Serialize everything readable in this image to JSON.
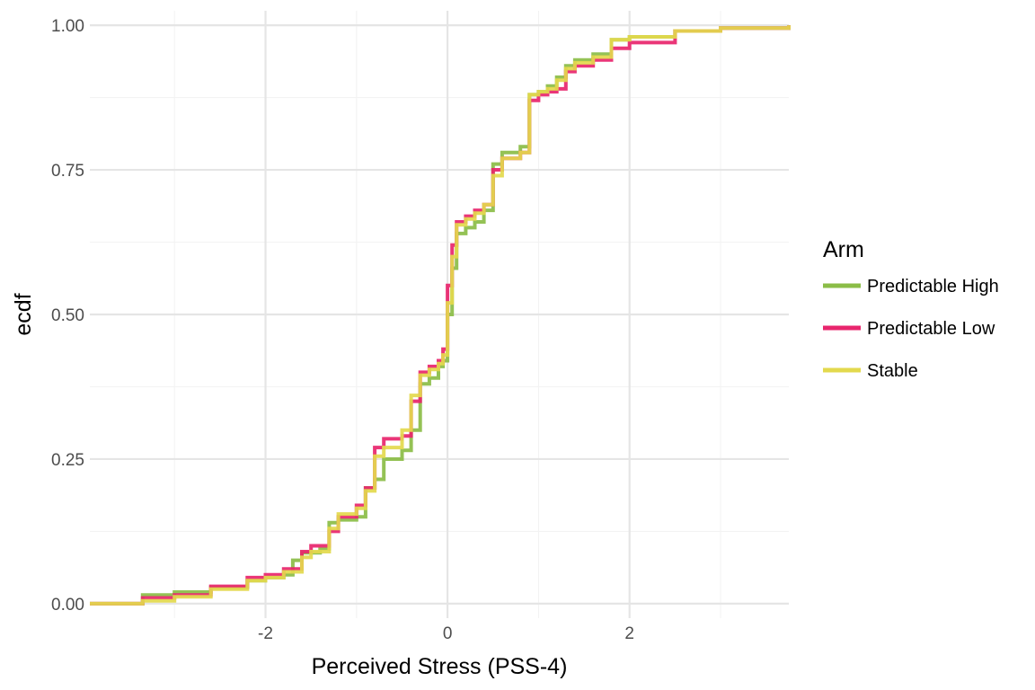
{
  "chart_data": {
    "type": "line",
    "subtype": "ecdf-step",
    "title": "",
    "xlabel": "Perceived Stress (PSS-4)",
    "ylabel": "ecdf",
    "xlim": [
      -3.93,
      3.75
    ],
    "ylim": [
      -0.025,
      1.025
    ],
    "x_ticks": [
      -2,
      0,
      2
    ],
    "x_tick_labels": [
      "-2",
      "0",
      "2"
    ],
    "y_ticks": [
      0,
      0.25,
      0.5,
      0.75,
      1
    ],
    "y_tick_labels": [
      "0.00",
      "0.25",
      "0.50",
      "0.75",
      "1.00"
    ],
    "grid": true,
    "legend_title": "Arm",
    "legend_position": "right",
    "series": [
      {
        "name": "Predictable High",
        "color": "#8bbd47",
        "x": [
          -3.93,
          -3.45,
          -3.35,
          -3.0,
          -2.6,
          -2.2,
          -2.0,
          -1.8,
          -1.7,
          -1.6,
          -1.4,
          -1.3,
          -1.2,
          -1.0,
          -0.9,
          -0.8,
          -0.7,
          -0.5,
          -0.4,
          -0.3,
          -0.2,
          -0.1,
          -0.05,
          0.0,
          0.05,
          0.1,
          0.2,
          0.3,
          0.4,
          0.5,
          0.6,
          0.8,
          0.9,
          1.0,
          1.1,
          1.2,
          1.3,
          1.4,
          1.6,
          1.8,
          2.0,
          2.5,
          3.0,
          3.75
        ],
        "y": [
          0.0,
          0.0,
          0.015,
          0.02,
          0.028,
          0.04,
          0.045,
          0.05,
          0.075,
          0.088,
          0.095,
          0.14,
          0.145,
          0.15,
          0.2,
          0.215,
          0.25,
          0.265,
          0.3,
          0.38,
          0.39,
          0.41,
          0.42,
          0.5,
          0.58,
          0.64,
          0.65,
          0.66,
          0.68,
          0.76,
          0.78,
          0.79,
          0.88,
          0.885,
          0.895,
          0.91,
          0.93,
          0.94,
          0.95,
          0.975,
          0.98,
          0.99,
          0.995,
          1.0
        ]
      },
      {
        "name": "Predictable Low",
        "color": "#e8256d",
        "x": [
          -3.93,
          -3.45,
          -3.35,
          -3.0,
          -2.6,
          -2.2,
          -2.0,
          -1.8,
          -1.6,
          -1.5,
          -1.3,
          -1.2,
          -1.0,
          -0.9,
          -0.8,
          -0.7,
          -0.5,
          -0.4,
          -0.3,
          -0.2,
          -0.1,
          -0.05,
          0.0,
          0.05,
          0.1,
          0.2,
          0.3,
          0.4,
          0.5,
          0.6,
          0.8,
          0.9,
          1.0,
          1.1,
          1.2,
          1.3,
          1.4,
          1.6,
          1.8,
          2.0,
          2.5,
          3.0,
          3.75
        ],
        "y": [
          0.0,
          0.0,
          0.01,
          0.015,
          0.03,
          0.045,
          0.05,
          0.06,
          0.09,
          0.1,
          0.125,
          0.15,
          0.17,
          0.2,
          0.27,
          0.285,
          0.29,
          0.35,
          0.4,
          0.41,
          0.42,
          0.44,
          0.55,
          0.62,
          0.66,
          0.67,
          0.68,
          0.69,
          0.75,
          0.77,
          0.78,
          0.87,
          0.88,
          0.885,
          0.89,
          0.92,
          0.93,
          0.94,
          0.96,
          0.97,
          0.99,
          0.995,
          1.0
        ]
      },
      {
        "name": "Stable",
        "color": "#e3d94d",
        "x": [
          -3.93,
          -3.45,
          -3.35,
          -3.0,
          -2.6,
          -2.2,
          -2.0,
          -1.8,
          -1.6,
          -1.5,
          -1.3,
          -1.2,
          -1.0,
          -0.9,
          -0.8,
          -0.7,
          -0.5,
          -0.4,
          -0.3,
          -0.2,
          -0.1,
          -0.05,
          0.0,
          0.05,
          0.1,
          0.2,
          0.3,
          0.4,
          0.5,
          0.6,
          0.8,
          0.9,
          1.0,
          1.1,
          1.2,
          1.3,
          1.4,
          1.6,
          1.8,
          2.0,
          2.5,
          3.0,
          3.75
        ],
        "y": [
          0.0,
          0.0,
          0.005,
          0.012,
          0.025,
          0.04,
          0.045,
          0.055,
          0.08,
          0.09,
          0.13,
          0.155,
          0.165,
          0.195,
          0.255,
          0.27,
          0.3,
          0.36,
          0.395,
          0.405,
          0.415,
          0.43,
          0.52,
          0.6,
          0.655,
          0.665,
          0.675,
          0.69,
          0.74,
          0.77,
          0.78,
          0.88,
          0.885,
          0.89,
          0.905,
          0.925,
          0.935,
          0.945,
          0.975,
          0.98,
          0.99,
          0.995,
          1.0
        ]
      }
    ]
  }
}
